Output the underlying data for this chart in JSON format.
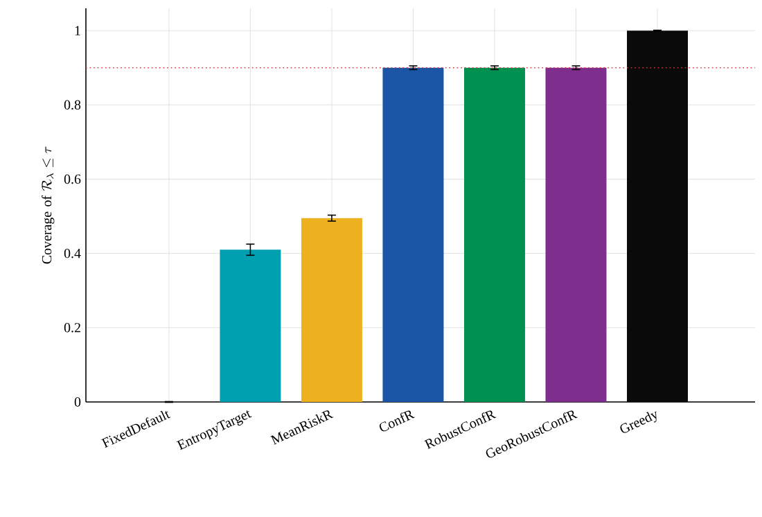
{
  "chart_data": {
    "type": "bar",
    "ylabel": "\\mathrm{Coverage\\ of\\ }\\mathcal{R}_\\lambda \\le \\tau",
    "categories": [
      "FixedDefault",
      "EntropyTarget",
      "MeanRiskR",
      "ConfR",
      "RobustConfR",
      "GeoRobustConfR",
      "Greedy"
    ],
    "values": [
      0,
      0.41,
      0.495,
      0.9,
      0.9,
      0.9,
      1.0
    ],
    "errors": [
      0.001,
      0.015,
      0.008,
      0.005,
      0.005,
      0.005,
      0.001
    ],
    "colors": [
      "#1a55a6",
      "#00a0b0",
      "#edb120",
      "#1a55a6",
      "#009050",
      "#7e2f8e",
      "#0a0a0a"
    ],
    "ylim": [
      0,
      1.06
    ],
    "yticks": [
      0,
      0.2,
      0.4,
      0.6,
      0.8,
      1
    ],
    "ref_lines": [
      {
        "axis": "y",
        "value": 0.9,
        "color": "#e03030",
        "line_style": "dotted"
      }
    ],
    "grid": true
  }
}
